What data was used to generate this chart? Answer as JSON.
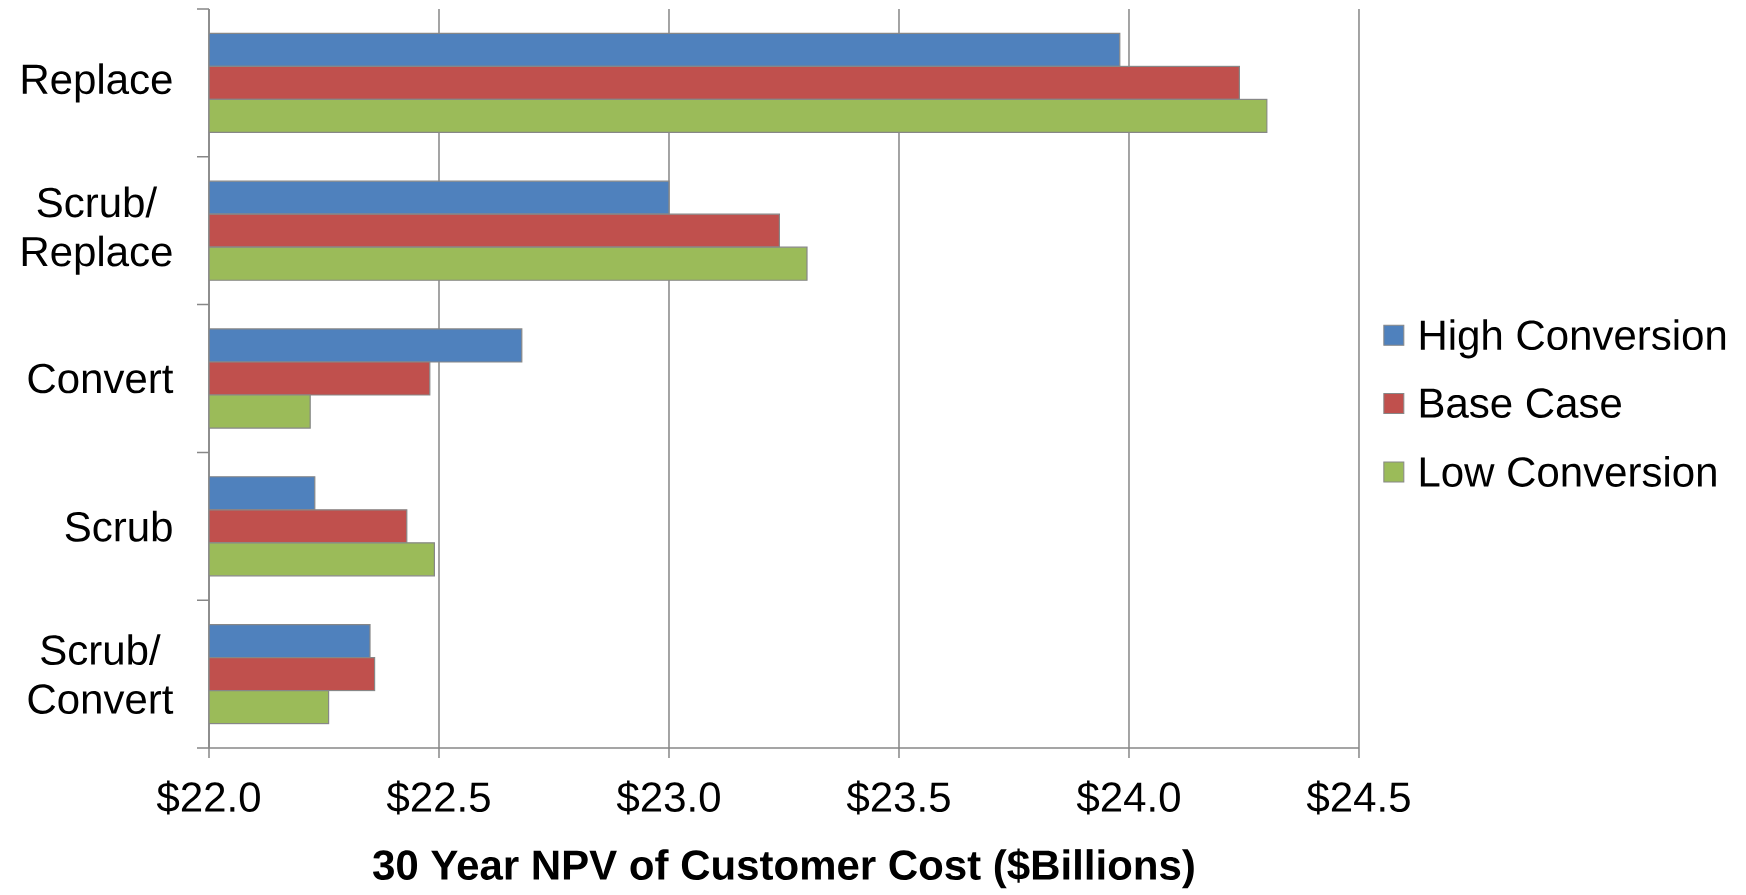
{
  "chart_data": {
    "type": "bar",
    "orientation": "horizontal",
    "categories": [
      "Replace",
      "Scrub/ Replace",
      "Convert",
      "Scrub",
      "Scrub/ Convert"
    ],
    "series": [
      {
        "name": "High Conversion",
        "color": "#4f81bd",
        "values": [
          23.98,
          23.0,
          22.68,
          22.23,
          22.35
        ]
      },
      {
        "name": "Base Case",
        "color": "#c0504d",
        "values": [
          24.24,
          23.24,
          22.48,
          22.43,
          22.36
        ]
      },
      {
        "name": "Low Conversion",
        "color": "#9bbb59",
        "values": [
          24.3,
          23.3,
          22.22,
          22.49,
          22.26
        ]
      }
    ],
    "xlim": [
      22,
      24.5
    ],
    "xticks": [
      {
        "value": 22,
        "label": "$22.0"
      },
      {
        "value": 22.5,
        "label": "$22.5"
      },
      {
        "value": 23,
        "label": "$23.0"
      },
      {
        "value": 23.5,
        "label": "$23.5"
      },
      {
        "value": 24,
        "label": "$24.0"
      },
      {
        "value": 24.5,
        "label": "$24.5"
      }
    ],
    "xlabel": "30 Year NPV of Customer Cost ($Billions)",
    "grid": "x",
    "legend": "right"
  }
}
